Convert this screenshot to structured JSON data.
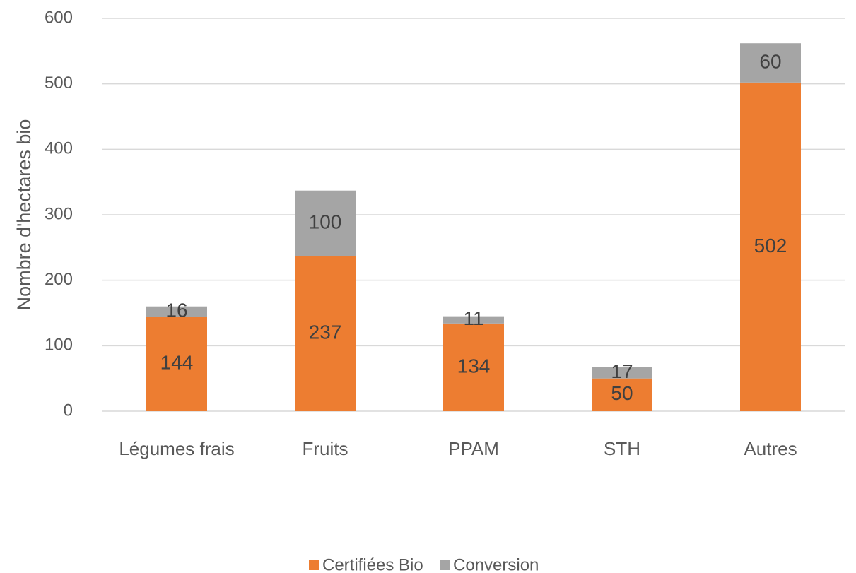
{
  "chart_data": {
    "type": "bar",
    "stacked": true,
    "ylabel": "Nombre d'hectares bio",
    "categories": [
      "Légumes frais",
      "Fruits",
      "PPAM",
      "STH",
      "Autres"
    ],
    "series": [
      {
        "name": "Certifiées Bio",
        "color": "#ed7d31",
        "values": [
          144,
          237,
          134,
          50,
          502
        ]
      },
      {
        "name": "Conversion",
        "color": "#a5a5a5",
        "values": [
          16,
          100,
          11,
          17,
          60
        ]
      }
    ],
    "ylim": [
      0,
      600
    ],
    "yticks": [
      0,
      100,
      200,
      300,
      400,
      500,
      600
    ],
    "grid": true,
    "legend": "bottom"
  }
}
